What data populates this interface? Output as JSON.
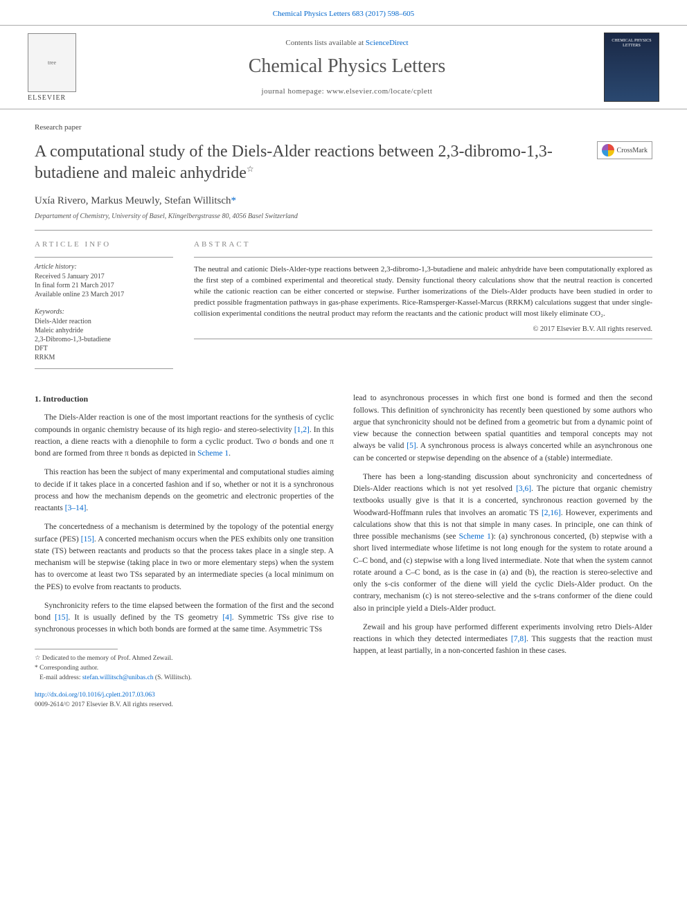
{
  "top_citation": "Chemical Physics Letters 683 (2017) 598–605",
  "header": {
    "contents_prefix": "Contents lists available at ",
    "sciencedirect": "ScienceDirect",
    "journal": "Chemical Physics Letters",
    "homepage_prefix": "journal homepage: ",
    "homepage": "www.elsevier.com/locate/cplett",
    "publisher": "ELSEVIER",
    "right_badge": "CHEMICAL PHYSICS LETTERS"
  },
  "crossmark": "CrossMark",
  "paper_type": "Research paper",
  "title_main": "A computational study of the Diels-Alder reactions between 2,3-dibromo-1,3-butadiene and maleic anhydride",
  "title_note": "☆",
  "authors_line": "Uxía Rivero, Markus Meuwly, Stefan Willitsch",
  "corr_marker": "*",
  "affiliation": "Departament of Chemistry, University of Basel, Klingelbergstrasse 80, 4056 Basel Switzerland",
  "article_info_heading": "ARTICLE INFO",
  "history": {
    "label": "Article history:",
    "received": "Received 5 January 2017",
    "final": "In final form 21 March 2017",
    "online": "Available online 23 March 2017"
  },
  "keywords": {
    "label": "Keywords:",
    "items": [
      "Diels-Alder reaction",
      "Maleic anhydride",
      "2,3-Dibromo-1,3-butadiene",
      "DFT",
      "RRKM"
    ]
  },
  "abstract_heading": "ABSTRACT",
  "abstract_text": "The neutral and cationic Diels-Alder-type reactions between 2,3-dibromo-1,3-butadiene and maleic anhydride have been computationally explored as the first step of a combined experimental and theoretical study. Density functional theory calculations show that the neutral reaction is concerted while the cationic reaction can be either concerted or stepwise. Further isomerizations of the Diels-Alder products have been studied in order to predict possible fragmentation pathways in gas-phase experiments. Rice-Ramsperger-Kassel-Marcus (RRKM) calculations suggest that under single-collision experimental conditions the neutral product may reform the reactants and the cationic product will most likely eliminate CO₂.",
  "abstract_copyright": "© 2017 Elsevier B.V. All rights reserved.",
  "intro_heading": "1. Introduction",
  "paragraphs_left": [
    {
      "plain": "The Diels-Alder reaction is one of the most important reactions for the synthesis of cyclic compounds in organic chemistry because of its high regio- and stereo-selectivity ",
      "cite": "[1,2]",
      "tail": ". In this reaction, a diene reacts with a dienophile to form a cyclic product. Two σ bonds and one π bond are formed from three π bonds as depicted in ",
      "cite2": "Scheme 1",
      "tail2": "."
    },
    {
      "plain": "This reaction has been the subject of many experimental and computational studies aiming to decide if it takes place in a concerted fashion and if so, whether or not it is a synchronous process and how the mechanism depends on the geometric and electronic properties of the reactants ",
      "cite": "[3–14]",
      "tail": "."
    },
    {
      "plain": "The concertedness of a mechanism is determined by the topology of the potential energy surface (PES) ",
      "cite": "[15]",
      "tail": ". A concerted mechanism occurs when the PES exhibits only one transition state (TS) between reactants and products so that the process takes place in a single step. A mechanism will be stepwise (taking place in two or more elementary steps) when the system has to overcome at least two TSs separated by an intermediate species (a local minimum on the PES) to evolve from reactants to products."
    },
    {
      "plain": "Synchronicity refers to the time elapsed between the formation of the first and the second bond ",
      "cite": "[15]",
      "tail": ". It is usually defined by the TS geometry ",
      "cite2": "[4]",
      "tail2": ". Symmetric TSs give rise to synchronous processes in which both bonds are formed at the same time. Asymmetric TSs"
    }
  ],
  "paragraphs_right": [
    {
      "plain": "lead to asynchronous processes in which first one bond is formed and then the second follows. This definition of synchronicity has recently been questioned by some authors who argue that synchronicity should not be defined from a geometric but from a dynamic point of view because the connection between spatial quantities and temporal concepts may not always be valid ",
      "cite": "[5]",
      "tail": ". A synchronous process is always concerted while an asynchronous one can be concerted or stepwise depending on the absence of a (stable) intermediate."
    },
    {
      "plain": "There has been a long-standing discussion about synchronicity and concertedness of Diels-Alder reactions which is not yet resolved ",
      "cite": "[3,6]",
      "tail": ". The picture that organic chemistry textbooks usually give is that it is a concerted, synchronous reaction governed by the Woodward-Hoffmann rules that involves an aromatic TS ",
      "cite2": "[2,16]",
      "tail2": ". However, experiments and calculations show that this is not that simple in many cases. In principle, one can think of three possible mechanisms (see ",
      "cite3": "Scheme 1",
      "tail3": "): (a) synchronous concerted, (b) stepwise with a short lived intermediate whose lifetime is not long enough for the system to rotate around a C–C bond, and (c) stepwise with a long lived intermediate. Note that when the system cannot rotate around a C–C bond, as is the case in (a) and (b), the reaction is stereo-selective and only the s-cis conformer of the diene will yield the cyclic Diels-Alder product. On the contrary, mechanism (c) is not stereo-selective and the s-trans conformer of the diene could also in principle yield a Diels-Alder product."
    },
    {
      "plain": "Zewail and his group have performed different experiments involving retro Diels-Alder reactions in which they detected intermediates ",
      "cite": "[7,8]",
      "tail": ". This suggests that the reaction must happen, at least partially, in a non-concerted fashion in these cases."
    }
  ],
  "footnotes": {
    "dedication": "☆ Dedicated to the memory of Prof. Ahmed Zewail.",
    "corr_label": "* Corresponding author.",
    "email_label": "E-mail address: ",
    "email": "stefan.willitsch@unibas.ch",
    "email_tail": " (S. Willitsch)."
  },
  "doi": {
    "url": "http://dx.doi.org/10.1016/j.cplett.2017.03.063",
    "issn": "0009-2614/© 2017 Elsevier B.V. All rights reserved."
  },
  "colors": {
    "link": "#0066cc",
    "text": "#333333",
    "muted": "#888888",
    "rule": "#999999"
  }
}
